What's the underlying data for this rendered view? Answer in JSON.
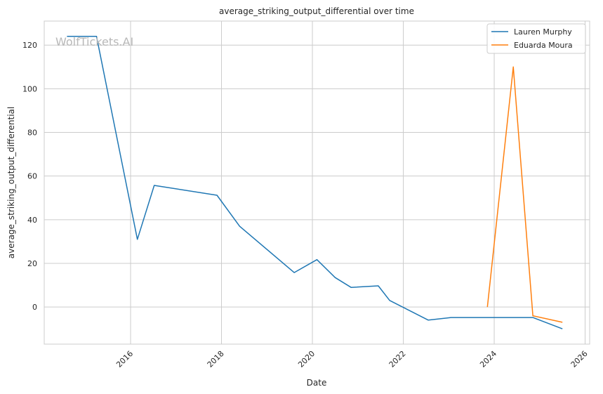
{
  "chart_data": {
    "type": "line",
    "title": "average_striking_output_differential over time",
    "xlabel": "Date",
    "ylabel": "average_striking_output_differential",
    "watermark": "WolfTickets.AI",
    "x_ticks": [
      "2016",
      "2018",
      "2020",
      "2022",
      "2024",
      "2026"
    ],
    "y_ticks": [
      0,
      20,
      40,
      60,
      80,
      100,
      120
    ],
    "xlim": [
      2014.1,
      2026.1
    ],
    "ylim": [
      -17,
      131
    ],
    "grid": true,
    "legend_position": "top-right",
    "series": [
      {
        "name": "Lauren Murphy",
        "color": "#1f77b4",
        "x": [
          2014.6,
          2015.25,
          2016.15,
          2016.52,
          2017.9,
          2018.4,
          2019.6,
          2020.1,
          2020.5,
          2020.85,
          2021.45,
          2021.7,
          2022.55,
          2023.05,
          2024.85,
          2025.5
        ],
        "y": [
          124,
          124,
          31,
          55.7,
          51.2,
          37,
          15.8,
          21.7,
          13.5,
          9,
          9.7,
          3,
          -6,
          -4.8,
          -4.8,
          -10
        ]
      },
      {
        "name": "Eduarda Moura",
        "color": "#ff7f0e",
        "x": [
          2023.85,
          2024.42,
          2024.85,
          2025.5
        ],
        "y": [
          0,
          110,
          -4,
          -7
        ]
      }
    ]
  }
}
